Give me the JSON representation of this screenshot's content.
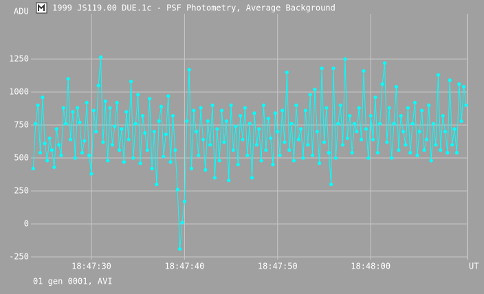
{
  "chart_data": {
    "type": "line",
    "title": "1999 JS119.00 DUE.1c - PSF Photometry, Average Background",
    "y_label": "ADU",
    "x_label": "UT",
    "footer": "01 gen 0001, AVI",
    "xlim": [
      67643.5,
      67690.4
    ],
    "xticks": [
      {
        "value": 67650,
        "label": "18:47:30"
      },
      {
        "value": 67660,
        "label": "18:47:40"
      },
      {
        "value": 67670,
        "label": "18:47:50"
      },
      {
        "value": 67680,
        "label": "18:48:00"
      }
    ],
    "ylim": [
      -271,
      1594
    ],
    "yticks": [
      -250,
      0,
      250,
      500,
      750,
      1000,
      1250
    ],
    "grid": true,
    "x": [
      67643.75,
      67644,
      67644.25,
      67644.5,
      67644.75,
      67645,
      67645.25,
      67645.5,
      67645.75,
      67646,
      67646.25,
      67646.5,
      67646.75,
      67647,
      67647.25,
      67647.5,
      67647.75,
      67648,
      67648.25,
      67648.5,
      67648.75,
      67649,
      67649.25,
      67649.5,
      67649.75,
      67650,
      67650.25,
      67650.5,
      67650.75,
      67651,
      67651.25,
      67651.5,
      67651.75,
      67652,
      67652.25,
      67652.5,
      67652.75,
      67653,
      67653.25,
      67653.5,
      67653.75,
      67654,
      67654.25,
      67654.5,
      67654.75,
      67655,
      67655.25,
      67655.5,
      67655.75,
      67656,
      67656.25,
      67656.5,
      67656.75,
      67657,
      67657.25,
      67657.5,
      67657.75,
      67658,
      67658.25,
      67658.5,
      67658.75,
      67659,
      67659.25,
      67659.5,
      67659.75,
      67660,
      67660.25,
      67660.5,
      67660.75,
      67661,
      67661.25,
      67661.5,
      67661.75,
      67662,
      67662.25,
      67662.5,
      67662.75,
      67663,
      67663.25,
      67663.5,
      67663.75,
      67664,
      67664.25,
      67664.5,
      67664.75,
      67665,
      67665.25,
      67665.5,
      67665.75,
      67666,
      67666.25,
      67666.5,
      67666.75,
      67667,
      67667.25,
      67667.5,
      67667.75,
      67668,
      67668.25,
      67668.5,
      67668.75,
      67669,
      67669.25,
      67669.5,
      67669.75,
      67670,
      67670.25,
      67670.5,
      67670.75,
      67671,
      67671.25,
      67671.5,
      67671.75,
      67672,
      67672.25,
      67672.5,
      67672.75,
      67673,
      67673.25,
      67673.5,
      67673.75,
      67674,
      67674.25,
      67674.5,
      67674.75,
      67675,
      67675.25,
      67675.5,
      67675.75,
      67676,
      67676.25,
      67676.5,
      67676.75,
      67677,
      67677.25,
      67677.5,
      67677.75,
      67678,
      67678.25,
      67678.5,
      67678.75,
      67679,
      67679.25,
      67679.5,
      67679.75,
      67680,
      67680.25,
      67680.5,
      67680.75,
      67681,
      67681.25,
      67681.5,
      67681.75,
      67682,
      67682.25,
      67682.5,
      67682.75,
      67683,
      67683.25,
      67683.5,
      67683.75,
      67684,
      67684.25,
      67684.5,
      67684.75,
      67685,
      67685.25,
      67685.5,
      67685.75,
      67686,
      67686.25,
      67686.5,
      67686.75,
      67687,
      67687.25,
      67687.5,
      67687.75,
      67688,
      67688.25,
      67688.5,
      67688.75,
      67689,
      67689.25,
      67689.5,
      67689.75,
      67690,
      67690.25
    ],
    "series": [
      {
        "color": "#00ffff",
        "values": [
          420,
          760,
          900,
          540,
          960,
          610,
          480,
          650,
          560,
          430,
          720,
          600,
          520,
          880,
          760,
          1100,
          640,
          850,
          500,
          880,
          770,
          540,
          630,
          920,
          520,
          380,
          860,
          700,
          1050,
          1265,
          620,
          930,
          480,
          880,
          600,
          740,
          920,
          560,
          720,
          470,
          850,
          640,
          1080,
          500,
          760,
          980,
          460,
          820,
          690,
          560,
          950,
          420,
          700,
          300,
          780,
          890,
          510,
          680,
          970,
          470,
          820,
          560,
          260,
          -190,
          10,
          170,
          780,
          1170,
          420,
          860,
          700,
          520,
          880,
          640,
          410,
          780,
          600,
          900,
          350,
          720,
          480,
          860,
          620,
          780,
          330,
          900,
          560,
          740,
          450,
          820,
          640,
          880,
          520,
          760,
          350,
          840,
          600,
          720,
          480,
          900,
          560,
          800,
          650,
          450,
          840,
          700,
          520,
          860,
          620,
          1150,
          560,
          760,
          480,
          900,
          640,
          720,
          500,
          860,
          600,
          980,
          520,
          1020,
          700,
          460,
          1180,
          620,
          880,
          540,
          300,
          1180,
          500,
          760,
          900,
          600,
          1250,
          650,
          820,
          540,
          760,
          700,
          880,
          640,
          1160,
          720,
          500,
          820,
          640,
          960,
          540,
          760,
          1060,
          1220,
          620,
          880,
          500,
          760,
          1040,
          560,
          820,
          700,
          600,
          880,
          540,
          760,
          920,
          520,
          700,
          860,
          560,
          640,
          900,
          480,
          760,
          600,
          1130,
          560,
          820,
          700,
          540,
          1090,
          600,
          720,
          540,
          1060,
          780,
          1040,
          900
        ]
      }
    ]
  }
}
